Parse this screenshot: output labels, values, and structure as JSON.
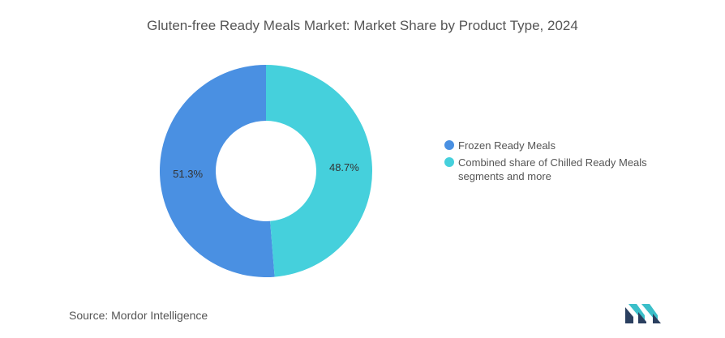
{
  "chart_data": {
    "type": "pie",
    "variant": "donut",
    "title": "Gluten-free Ready Meals Market: Market Share by Product Type, 2024",
    "slices": [
      {
        "label": "Frozen Ready Meals",
        "value": 51.3,
        "display": "51.3%",
        "color": "#4a90e2"
      },
      {
        "label": "Combined share of Chilled Ready Meals segments and more",
        "value": 48.7,
        "display": "48.7%",
        "color": "#45d0dc"
      }
    ],
    "legend_position": "right"
  },
  "source": {
    "text": "Source:  Mordor Intelligence"
  },
  "logo": {
    "icon": "mordor-intelligence-logo-icon",
    "colors": [
      "#2a3f5f",
      "#3bbfc9"
    ]
  }
}
